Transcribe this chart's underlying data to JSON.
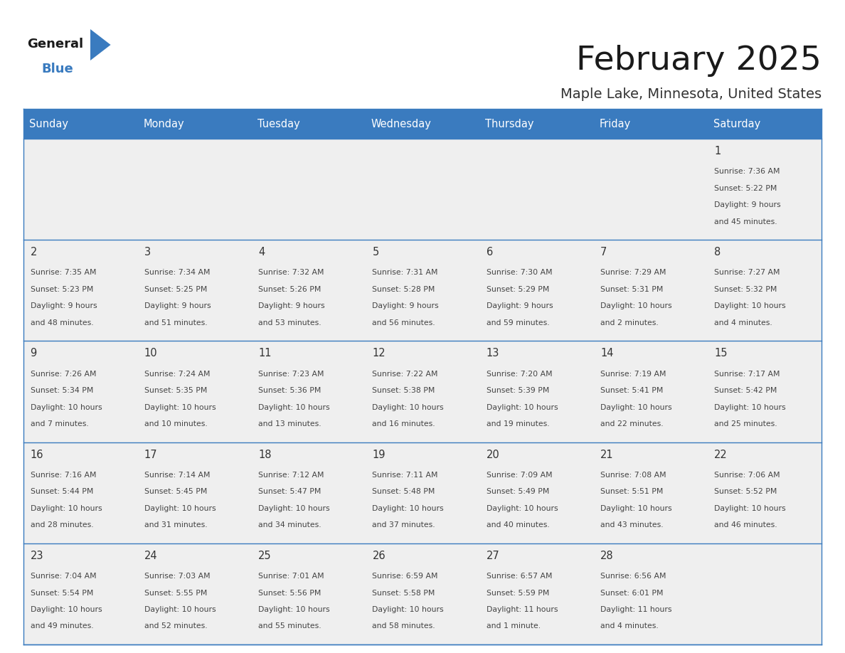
{
  "title": "February 2025",
  "subtitle": "Maple Lake, Minnesota, United States",
  "days_of_week": [
    "Sunday",
    "Monday",
    "Tuesday",
    "Wednesday",
    "Thursday",
    "Friday",
    "Saturday"
  ],
  "header_bg": "#3a7bbf",
  "header_text": "#ffffff",
  "cell_bg": "#efefef",
  "border_color": "#3a7bbf",
  "day_number_color": "#333333",
  "cell_text_color": "#444444",
  "title_color": "#1a1a1a",
  "subtitle_color": "#333333",
  "calendar_data": [
    [
      null,
      null,
      null,
      null,
      null,
      null,
      {
        "day": 1,
        "sunrise": "7:36 AM",
        "sunset": "5:22 PM",
        "daylight": "9 hours and 45 minutes"
      }
    ],
    [
      {
        "day": 2,
        "sunrise": "7:35 AM",
        "sunset": "5:23 PM",
        "daylight": "9 hours and 48 minutes"
      },
      {
        "day": 3,
        "sunrise": "7:34 AM",
        "sunset": "5:25 PM",
        "daylight": "9 hours and 51 minutes"
      },
      {
        "day": 4,
        "sunrise": "7:32 AM",
        "sunset": "5:26 PM",
        "daylight": "9 hours and 53 minutes"
      },
      {
        "day": 5,
        "sunrise": "7:31 AM",
        "sunset": "5:28 PM",
        "daylight": "9 hours and 56 minutes"
      },
      {
        "day": 6,
        "sunrise": "7:30 AM",
        "sunset": "5:29 PM",
        "daylight": "9 hours and 59 minutes"
      },
      {
        "day": 7,
        "sunrise": "7:29 AM",
        "sunset": "5:31 PM",
        "daylight": "10 hours and 2 minutes"
      },
      {
        "day": 8,
        "sunrise": "7:27 AM",
        "sunset": "5:32 PM",
        "daylight": "10 hours and 4 minutes"
      }
    ],
    [
      {
        "day": 9,
        "sunrise": "7:26 AM",
        "sunset": "5:34 PM",
        "daylight": "10 hours and 7 minutes"
      },
      {
        "day": 10,
        "sunrise": "7:24 AM",
        "sunset": "5:35 PM",
        "daylight": "10 hours and 10 minutes"
      },
      {
        "day": 11,
        "sunrise": "7:23 AM",
        "sunset": "5:36 PM",
        "daylight": "10 hours and 13 minutes"
      },
      {
        "day": 12,
        "sunrise": "7:22 AM",
        "sunset": "5:38 PM",
        "daylight": "10 hours and 16 minutes"
      },
      {
        "day": 13,
        "sunrise": "7:20 AM",
        "sunset": "5:39 PM",
        "daylight": "10 hours and 19 minutes"
      },
      {
        "day": 14,
        "sunrise": "7:19 AM",
        "sunset": "5:41 PM",
        "daylight": "10 hours and 22 minutes"
      },
      {
        "day": 15,
        "sunrise": "7:17 AM",
        "sunset": "5:42 PM",
        "daylight": "10 hours and 25 minutes"
      }
    ],
    [
      {
        "day": 16,
        "sunrise": "7:16 AM",
        "sunset": "5:44 PM",
        "daylight": "10 hours and 28 minutes"
      },
      {
        "day": 17,
        "sunrise": "7:14 AM",
        "sunset": "5:45 PM",
        "daylight": "10 hours and 31 minutes"
      },
      {
        "day": 18,
        "sunrise": "7:12 AM",
        "sunset": "5:47 PM",
        "daylight": "10 hours and 34 minutes"
      },
      {
        "day": 19,
        "sunrise": "7:11 AM",
        "sunset": "5:48 PM",
        "daylight": "10 hours and 37 minutes"
      },
      {
        "day": 20,
        "sunrise": "7:09 AM",
        "sunset": "5:49 PM",
        "daylight": "10 hours and 40 minutes"
      },
      {
        "day": 21,
        "sunrise": "7:08 AM",
        "sunset": "5:51 PM",
        "daylight": "10 hours and 43 minutes"
      },
      {
        "day": 22,
        "sunrise": "7:06 AM",
        "sunset": "5:52 PM",
        "daylight": "10 hours and 46 minutes"
      }
    ],
    [
      {
        "day": 23,
        "sunrise": "7:04 AM",
        "sunset": "5:54 PM",
        "daylight": "10 hours and 49 minutes"
      },
      {
        "day": 24,
        "sunrise": "7:03 AM",
        "sunset": "5:55 PM",
        "daylight": "10 hours and 52 minutes"
      },
      {
        "day": 25,
        "sunrise": "7:01 AM",
        "sunset": "5:56 PM",
        "daylight": "10 hours and 55 minutes"
      },
      {
        "day": 26,
        "sunrise": "6:59 AM",
        "sunset": "5:58 PM",
        "daylight": "10 hours and 58 minutes"
      },
      {
        "day": 27,
        "sunrise": "6:57 AM",
        "sunset": "5:59 PM",
        "daylight": "11 hours and 1 minute"
      },
      {
        "day": 28,
        "sunrise": "6:56 AM",
        "sunset": "6:01 PM",
        "daylight": "11 hours and 4 minutes"
      },
      null
    ]
  ]
}
